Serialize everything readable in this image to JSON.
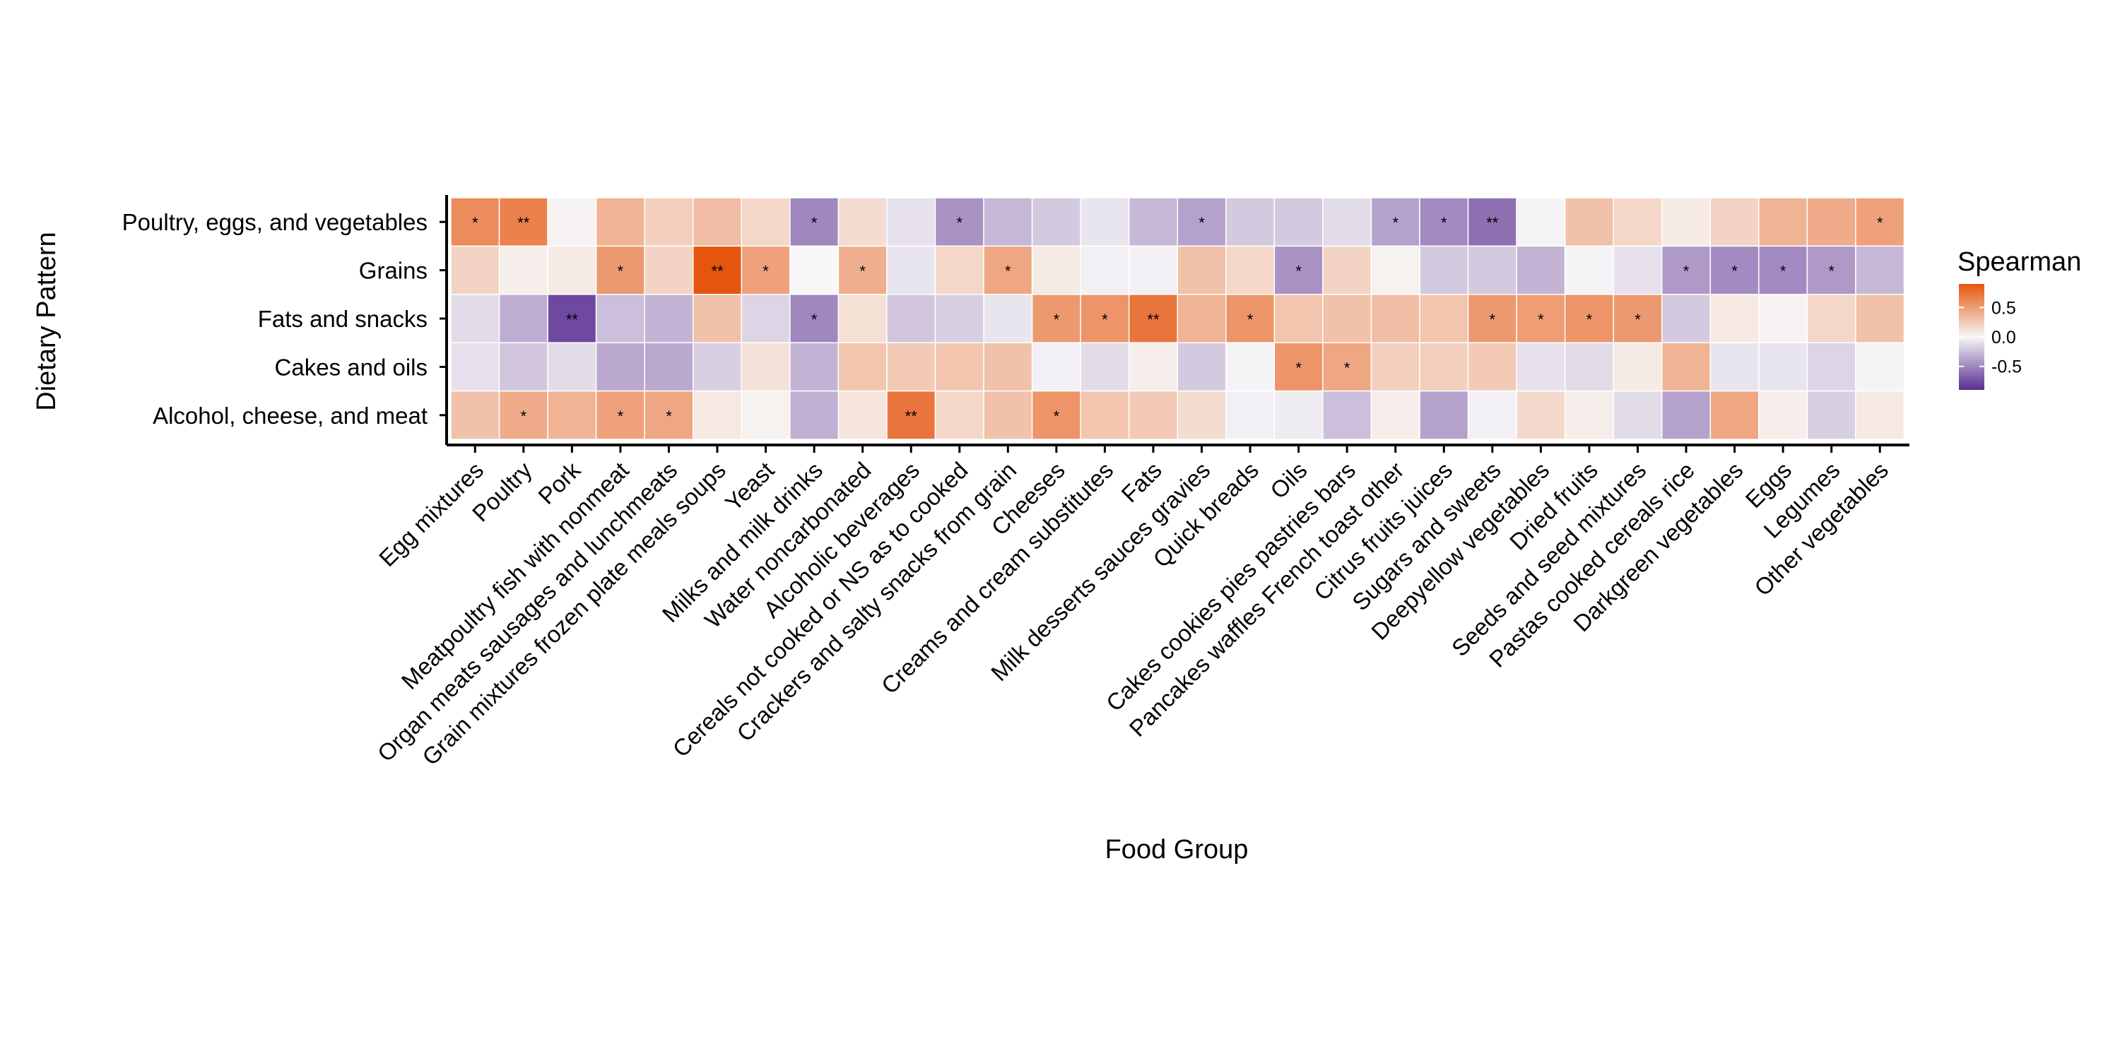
{
  "chart_data": {
    "type": "heatmap",
    "xlabel": "Food Group",
    "ylabel": "Dietary Pattern",
    "legend": {
      "title": "Spearman",
      "ticks": [
        "0.5",
        "0.0",
        "-0.5"
      ],
      "tick_values": [
        0.5,
        0,
        -0.5
      ],
      "range": [
        -0.9,
        0.9
      ],
      "placement": "right"
    },
    "colors": {
      "low": "#5a2d91",
      "mid": "#f7f7f7",
      "high": "#e6550d"
    },
    "rows": [
      "Poultry, eggs, and vegetables",
      "Grains",
      "Fats and snacks",
      "Cakes and oils",
      "Alcohol, cheese, and meat"
    ],
    "columns": [
      "Egg mixtures",
      "Poultry",
      "Pork",
      "Meatpoultry fish with nonmeat",
      "Organ meats sausages and lunchmeats",
      "Grain mixtures frozen plate meals soups",
      "Yeast",
      "Milks and milk drinks",
      "Water noncarbonated",
      "Alcoholic beverages",
      "Cereals not cooked or NS as to cooked",
      "Crackers and salty snacks from grain",
      "Cheeses",
      "Creams and cream substitutes",
      "Fats",
      "Milk desserts sauces gravies",
      "Quick breads",
      "Oils",
      "Cakes cookies pies pastries bars",
      "Pancakes waffles French toast other",
      "Citrus fruits juices",
      "Sugars and sweets",
      "Deepyellow vegetables",
      "Dried fruits",
      "Seeds and seed mixtures",
      "Pastas cooked cereals rice",
      "Darkgreen vegetables",
      "Eggs",
      "Legumes",
      "Other vegetables"
    ],
    "values": [
      [
        0.6,
        0.65,
        0.02,
        0.38,
        0.22,
        0.32,
        0.18,
        -0.5,
        0.15,
        -0.1,
        -0.45,
        -0.28,
        -0.2,
        -0.08,
        -0.28,
        -0.38,
        -0.2,
        -0.2,
        -0.12,
        -0.38,
        -0.48,
        -0.6,
        -0.02,
        0.3,
        0.18,
        0.07,
        0.2,
        0.38,
        0.42,
        0.48
      ],
      [
        0.2,
        0.05,
        0.07,
        0.52,
        0.2,
        0.9,
        0.48,
        0.0,
        0.4,
        -0.08,
        0.18,
        0.45,
        0.07,
        -0.03,
        -0.03,
        0.3,
        0.18,
        -0.45,
        0.2,
        0.03,
        -0.2,
        -0.2,
        -0.3,
        -0.02,
        -0.1,
        -0.42,
        -0.48,
        -0.48,
        -0.42,
        -0.28
      ],
      [
        -0.12,
        -0.33,
        -0.78,
        -0.25,
        -0.3,
        0.3,
        -0.15,
        -0.5,
        0.13,
        -0.22,
        -0.18,
        -0.08,
        0.52,
        0.55,
        0.72,
        0.38,
        0.55,
        0.28,
        0.3,
        0.32,
        0.28,
        0.52,
        0.5,
        0.55,
        0.52,
        -0.2,
        0.08,
        0.02,
        0.18,
        0.3
      ],
      [
        -0.1,
        -0.22,
        -0.12,
        -0.35,
        -0.35,
        -0.18,
        0.12,
        -0.3,
        0.28,
        0.25,
        0.28,
        0.3,
        -0.03,
        -0.12,
        0.05,
        -0.2,
        -0.02,
        0.55,
        0.45,
        0.22,
        0.22,
        0.25,
        -0.1,
        -0.12,
        0.07,
        0.38,
        -0.08,
        -0.08,
        -0.15,
        -0.02
      ],
      [
        0.3,
        0.42,
        0.38,
        0.48,
        0.45,
        0.08,
        0.03,
        -0.32,
        0.1,
        0.72,
        0.18,
        0.3,
        0.55,
        0.28,
        0.25,
        0.15,
        -0.03,
        -0.05,
        -0.25,
        0.05,
        -0.38,
        -0.03,
        0.17,
        0.05,
        -0.12,
        -0.38,
        0.45,
        0.05,
        -0.18,
        0.08
      ]
    ],
    "annotations": [
      [
        "*",
        "**",
        "",
        "",
        "",
        "",
        "",
        "*",
        "",
        "",
        "*",
        "",
        "",
        "",
        "",
        "*",
        "",
        "",
        "",
        "*",
        "*",
        "**",
        "",
        "",
        "",
        "",
        "",
        "",
        "",
        "*"
      ],
      [
        "",
        "",
        "",
        "*",
        "",
        "**",
        "*",
        "",
        "*",
        "",
        "",
        "*",
        "",
        "",
        "",
        "",
        "",
        "*",
        "",
        "",
        "",
        "",
        "",
        "",
        "",
        "*",
        "*",
        "*",
        "*",
        ""
      ],
      [
        "",
        "",
        "**",
        "",
        "",
        "",
        "",
        "*",
        "",
        "",
        "",
        "",
        "*",
        "*",
        "**",
        "",
        "*",
        "",
        "",
        "",
        "",
        "*",
        "*",
        "*",
        "*",
        "",
        "",
        "",
        "",
        ""
      ],
      [
        "",
        "",
        "",
        "",
        "",
        "",
        "",
        "",
        "",
        "",
        "",
        "",
        "",
        "",
        "",
        "",
        "",
        "*",
        "*",
        "",
        "",
        "",
        "",
        "",
        "",
        "",
        "",
        "",
        "",
        ""
      ],
      [
        "",
        "*",
        "",
        "*",
        "*",
        "",
        "",
        "",
        "",
        "**",
        "",
        "",
        "*",
        "",
        "",
        "",
        "",
        "",
        "",
        "",
        "",
        "",
        "",
        "",
        "",
        "",
        "",
        "",
        "",
        ""
      ]
    ]
  }
}
